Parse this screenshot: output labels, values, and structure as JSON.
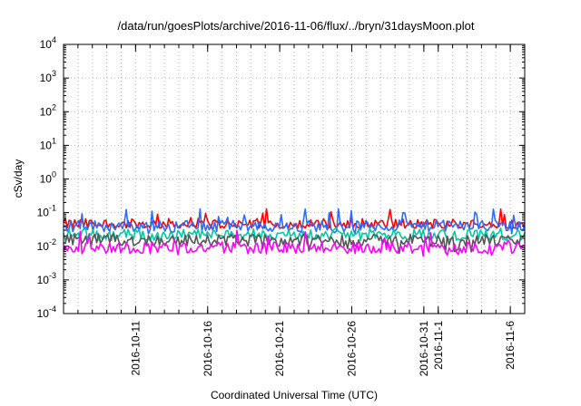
{
  "chart_data": {
    "type": "line",
    "title": "/data/run/goesPlots/archive/2016-11-06/flux/../bryn/31daysMoon.plot",
    "xlabel": "Coordinated Universal Time (UTC)",
    "ylabel": "cSv/day",
    "yscale": "log",
    "ylim": [
      0.0001,
      10000
    ],
    "xlim": [
      "2016-10-06",
      "2016-11-07"
    ],
    "grid": true,
    "legend": "none",
    "x_ticks": [
      {
        "date": "2016-10-11",
        "label": "2016-10-11"
      },
      {
        "date": "2016-10-16",
        "label": "2016-10-16"
      },
      {
        "date": "2016-10-21",
        "label": "2016-10-21"
      },
      {
        "date": "2016-10-26",
        "label": "2016-10-26"
      },
      {
        "date": "2016-10-31",
        "label": "2016-10-31"
      },
      {
        "date": "2016-11-01",
        "label": "2016-11-1"
      },
      {
        "date": "2016-11-06",
        "label": "2016-11-6"
      }
    ],
    "y_ticks": [
      {
        "value": 0.0001,
        "base": "10",
        "exp": "-4"
      },
      {
        "value": 0.001,
        "base": "10",
        "exp": "-3"
      },
      {
        "value": 0.01,
        "base": "10",
        "exp": "-2"
      },
      {
        "value": 0.1,
        "base": "10",
        "exp": "-1"
      },
      {
        "value": 1,
        "base": "10",
        "exp": "0"
      },
      {
        "value": 10,
        "base": "10",
        "exp": "1"
      },
      {
        "value": 100,
        "base": "10",
        "exp": "2"
      },
      {
        "value": 1000,
        "base": "10",
        "exp": "3"
      },
      {
        "value": 10000,
        "base": "10",
        "exp": "4"
      }
    ],
    "series": [
      {
        "color": "#ff0000",
        "typical": 0.045,
        "range": [
          0.035,
          0.14
        ]
      },
      {
        "color": "#2a6cff",
        "typical": 0.04,
        "range": [
          0.02,
          0.14
        ]
      },
      {
        "color": "#00c8a0",
        "typical": 0.022,
        "range": [
          0.015,
          0.035
        ]
      },
      {
        "color": "#555555",
        "typical": 0.015,
        "range": [
          0.006,
          0.025
        ]
      },
      {
        "color": "#ff00ff",
        "typical": 0.009,
        "range": [
          0.005,
          0.03
        ]
      }
    ]
  }
}
